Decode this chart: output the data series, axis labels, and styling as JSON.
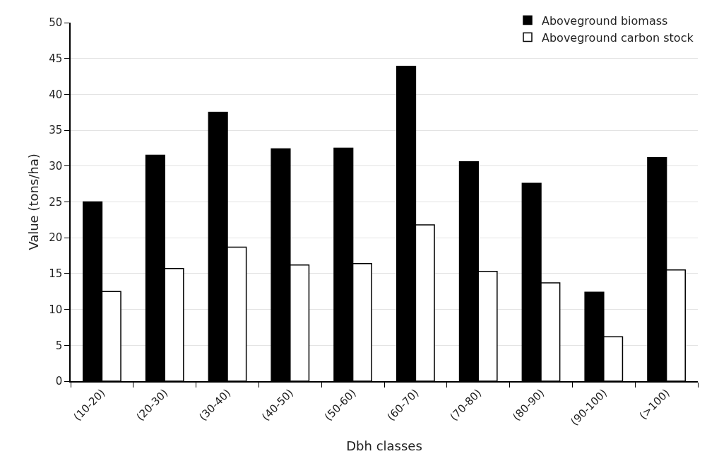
{
  "chart_data": {
    "type": "bar",
    "xlabel": "Dbh classes",
    "ylabel": "Value (tons/ha)",
    "categories": [
      "(10-20)",
      "(20-30)",
      "(30-40)",
      "(40-50)",
      "(50-60)",
      "(60-70)",
      "(70-80)",
      "(80-90)",
      "(90-100)",
      "(>100)"
    ],
    "series": [
      {
        "name": "Aboveground biomass",
        "color": "#000000",
        "values": [
          25.0,
          31.5,
          37.5,
          32.4,
          32.5,
          43.9,
          30.6,
          27.6,
          12.4,
          31.2
        ]
      },
      {
        "name": "Aboveground carbon stock",
        "color": "#ffffff",
        "values": [
          12.5,
          15.7,
          18.7,
          16.2,
          16.4,
          21.8,
          15.3,
          13.7,
          6.2,
          15.5
        ]
      }
    ],
    "ylim": [
      0,
      50
    ],
    "yticks": [
      0,
      5,
      10,
      15,
      20,
      25,
      30,
      35,
      40,
      45,
      50
    ],
    "grid": "y",
    "legend": "top right"
  }
}
